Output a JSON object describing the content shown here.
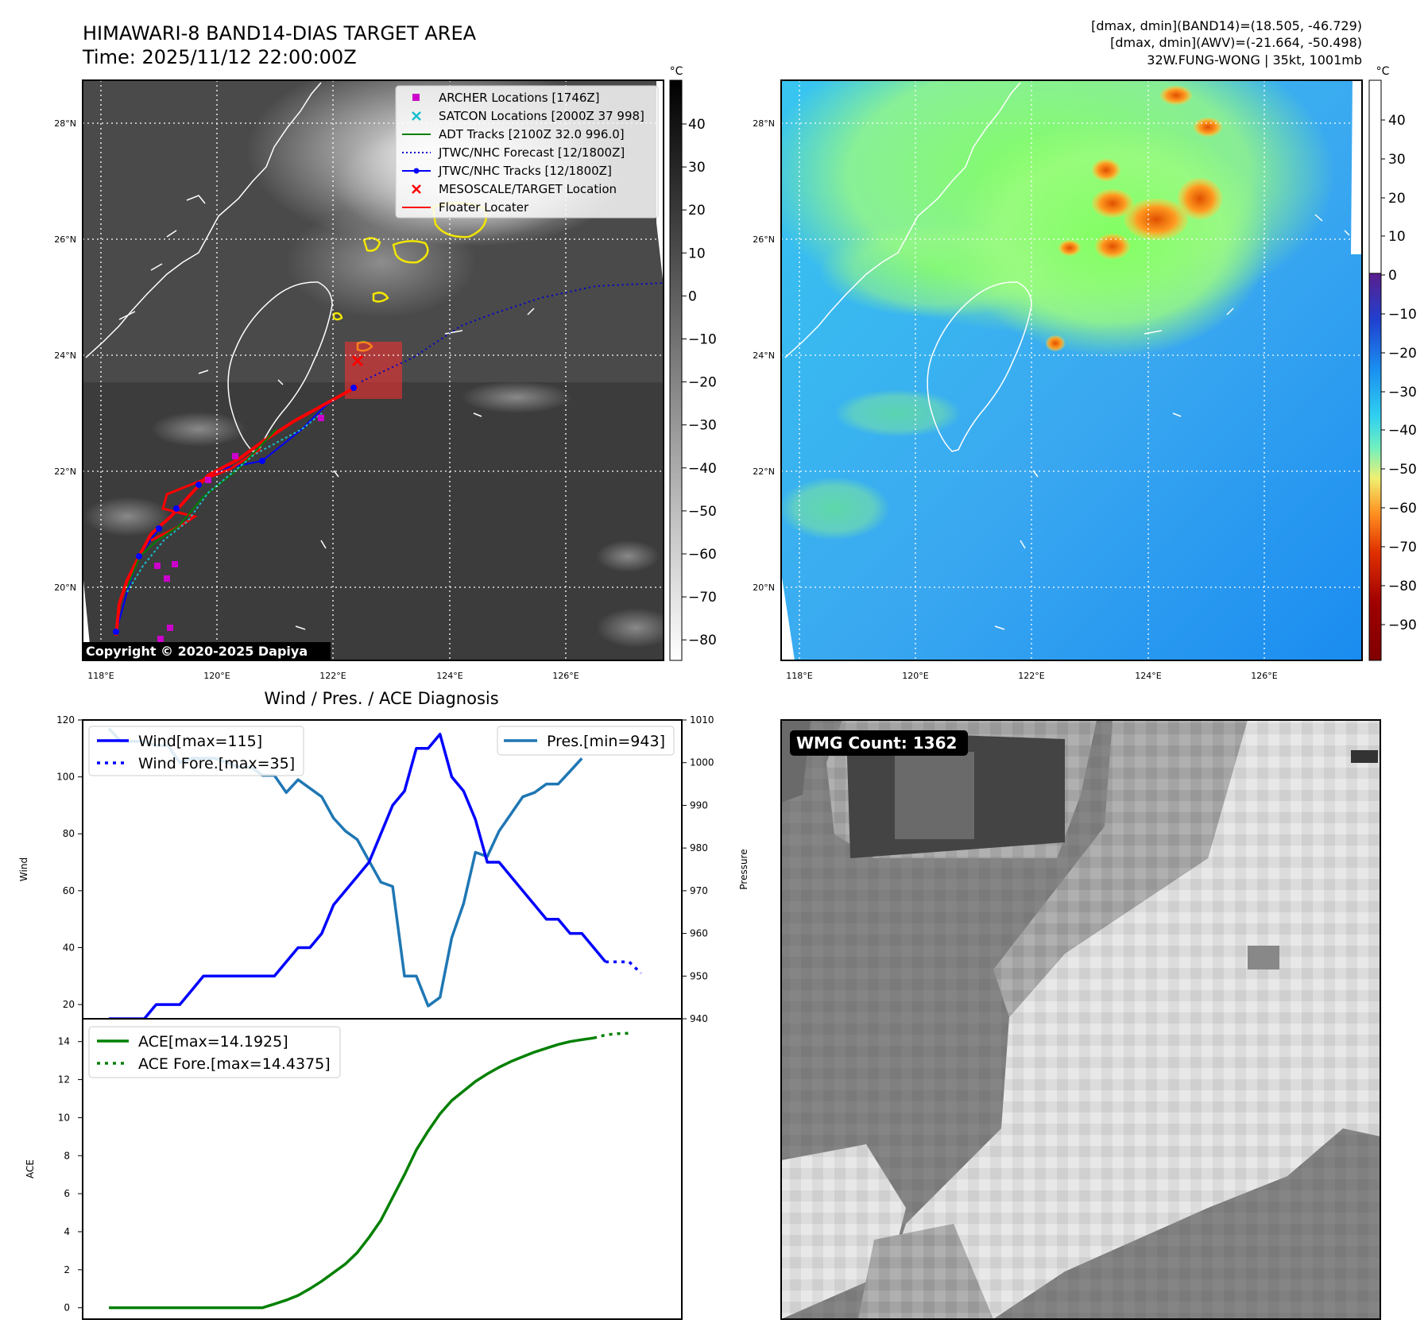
{
  "header": {
    "title_line1": "HIMAWARI-8 BAND14-DIAS TARGET AREA",
    "title_line2": "Time: 2025/11/12 22:00:00Z",
    "info_line1": "[dmax, dmin](BAND14)=(18.505, -46.729)",
    "info_line2": "[dmax, dmin](AWV)=(-21.664, -50.498)",
    "info_line3": "32W.FUNG-WONG | 35kt, 1001mb"
  },
  "map_panels": {
    "lon_labels": [
      "118°E",
      "120°E",
      "122°E",
      "124°E",
      "126°E"
    ],
    "lat_labels": [
      "28°N",
      "26°N",
      "24°N",
      "22°N",
      "20°N"
    ],
    "copyright": "Copyright © 2020-2025 Dapiya",
    "colorbar_unit": "°C",
    "ir_colorbar_ticks": [
      "40",
      "30",
      "20",
      "10",
      "0",
      "−10",
      "−20",
      "−30",
      "−40",
      "−50",
      "−60",
      "−70",
      "−80"
    ],
    "awv_colorbar_ticks": [
      "40",
      "30",
      "20",
      "10",
      "0",
      "−10",
      "−20",
      "−30",
      "−40",
      "−50",
      "−60",
      "−70",
      "−80",
      "−90"
    ],
    "legend": [
      {
        "label": "ARCHER Locations [1746Z]",
        "color": "#cc00cc",
        "marker": "square"
      },
      {
        "label": "SATCON Locations [2000Z 37 998]",
        "color": "#17becf",
        "marker": "x"
      },
      {
        "label": "ADT Tracks [2100Z 32.0 996.0]",
        "color": "#008000",
        "marker": "line"
      },
      {
        "label": "JTWC/NHC Forecast [12/1800Z]",
        "color": "#0000cc",
        "marker": "dotted"
      },
      {
        "label": "JTWC/NHC Tracks [12/1800Z]",
        "color": "#0000ff",
        "marker": "line-dot"
      },
      {
        "label": "MESOSCALE/TARGET Location",
        "color": "#ff0000",
        "marker": "x"
      },
      {
        "label": "Floater Locater",
        "color": "#ff0000",
        "marker": "line"
      }
    ]
  },
  "wmg": {
    "label": "WMG Count: 1362"
  },
  "chart_data": [
    {
      "type": "line",
      "title": "Wind / Pres. / ACE Diagnosis",
      "ylabel": "Wind",
      "ylabel_right": "Pressure",
      "ylim": [
        15,
        120
      ],
      "ylim_right": [
        940,
        1010
      ],
      "yticks": [
        20,
        40,
        60,
        80,
        100,
        120
      ],
      "yticks_right": [
        940,
        950,
        960,
        970,
        980,
        990,
        1000,
        1010
      ],
      "series": [
        {
          "name": "Wind[max=115]",
          "color": "#0000ff",
          "style": "solid",
          "axis": "left",
          "values": [
            15,
            15,
            15,
            15,
            20,
            20,
            20,
            25,
            30,
            30,
            30,
            30,
            30,
            30,
            30,
            35,
            40,
            40,
            45,
            55,
            60,
            65,
            70,
            80,
            90,
            95,
            110,
            110,
            115,
            100,
            95,
            85,
            70,
            70,
            65,
            60,
            55,
            50,
            50,
            45,
            45,
            40,
            35
          ]
        },
        {
          "name": "Wind Fore.[max=35]",
          "color": "#0000ff",
          "style": "dotted",
          "axis": "left",
          "values": [
            35,
            35,
            35,
            31
          ]
        },
        {
          "name": "Pres.[min=943]",
          "color": "#1f77b4",
          "style": "solid",
          "axis": "right",
          "values": [
            1008,
            1005,
            1005,
            1005,
            1004,
            1004,
            1000,
            1001,
            1001,
            1001,
            1000,
            999,
            999,
            997,
            997,
            993,
            996,
            994,
            992,
            987,
            984,
            982,
            977,
            972,
            971,
            950,
            950,
            943,
            945,
            959,
            967,
            979,
            978,
            984,
            988,
            992,
            993,
            995,
            995,
            998,
            1001
          ]
        }
      ]
    },
    {
      "type": "line",
      "ylabel": "ACE",
      "ylim": [
        -0.6,
        15.2
      ],
      "yticks": [
        0,
        2,
        4,
        6,
        8,
        10,
        12,
        14
      ],
      "series": [
        {
          "name": "ACE[max=14.1925]",
          "color": "#008000",
          "style": "solid",
          "values": [
            0,
            0,
            0,
            0,
            0,
            0,
            0,
            0,
            0,
            0,
            0,
            0,
            0,
            0,
            0.2,
            0.4,
            0.65,
            1.0,
            1.4,
            1.85,
            2.3,
            2.9,
            3.7,
            4.6,
            5.8,
            7.0,
            8.3,
            9.3,
            10.2,
            10.9,
            11.4,
            11.9,
            12.3,
            12.65,
            12.95,
            13.2,
            13.45,
            13.65,
            13.85,
            14.0,
            14.1,
            14.19
          ]
        },
        {
          "name": "ACE Fore.[max=14.4375]",
          "color": "#008000",
          "style": "dotted",
          "values": [
            14.19,
            14.35,
            14.42,
            14.44
          ]
        }
      ]
    }
  ]
}
